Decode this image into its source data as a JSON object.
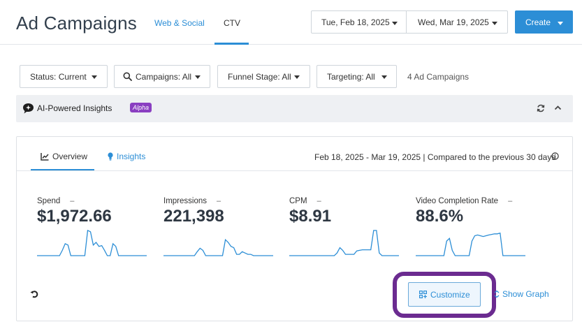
{
  "header": {
    "title": "Ad Campaigns",
    "tabs": [
      {
        "label": "Web & Social",
        "active": false
      },
      {
        "label": "CTV",
        "active": true
      }
    ],
    "date_start": "Tue, Feb 18, 2025",
    "date_end": "Wed, Mar 19, 2025",
    "create_label": "Create"
  },
  "filters": {
    "status": "Status: Current",
    "campaigns": "Campaigns: All",
    "funnel": "Funnel Stage: All",
    "targeting": "Targeting: All",
    "count": "4 Ad Campaigns"
  },
  "insights_bar": {
    "title": "AI-Powered Insights",
    "badge": "Alpha",
    "badge_color": "#8a3fc1"
  },
  "card": {
    "tabs": [
      {
        "label": "Overview",
        "active": true,
        "icon": "line-chart-icon"
      },
      {
        "label": "Insights",
        "active": false,
        "icon": "lightbulb-icon"
      }
    ],
    "range": "Feb 18, 2025 - Mar 19, 2025 | Compared to the previous 30 days",
    "metrics": [
      {
        "label": "Spend",
        "change": "–",
        "value": "$1,972.66",
        "spark": [
          0,
          0,
          0,
          0,
          0,
          0,
          0,
          0,
          0,
          0.2,
          0.45,
          0.4,
          0,
          0,
          0,
          0,
          0,
          0,
          0.95,
          0.9,
          0.4,
          0.5,
          0.35,
          0.38,
          0.2,
          0,
          0,
          0.45,
          0.35,
          0,
          0,
          0,
          0,
          0,
          0,
          0,
          0,
          0,
          0,
          0
        ]
      },
      {
        "label": "Impressions",
        "change": "–",
        "value": "221,398",
        "spark": [
          0,
          0,
          0,
          0,
          0,
          0,
          0,
          0,
          0,
          0,
          0,
          0,
          0.15,
          0.28,
          0.2,
          0,
          0,
          0,
          0,
          0,
          0,
          0,
          0.6,
          0.5,
          0.35,
          0.3,
          0.05,
          0.05,
          0.15,
          0.1,
          0.05,
          0.05,
          0,
          0,
          0,
          0,
          0,
          0,
          0,
          0
        ]
      },
      {
        "label": "CPM",
        "change": "–",
        "value": "$8.91",
        "spark": [
          0,
          0,
          0,
          0,
          0,
          0,
          0,
          0,
          0,
          0,
          0,
          0,
          0,
          0,
          0,
          0,
          0,
          0.1,
          0.3,
          0.2,
          0.05,
          0.05,
          0.05,
          0.05,
          0.18,
          0.2,
          0.22,
          0.22,
          0.22,
          0.22,
          0.95,
          0.95,
          0.1,
          0,
          0,
          0,
          0,
          0,
          0,
          0
        ]
      },
      {
        "label": "Video Completion Rate",
        "change": "–",
        "value": "88.6%",
        "spark": [
          0,
          0,
          0,
          0,
          0,
          0,
          0,
          0,
          0,
          0,
          0,
          0.55,
          0.65,
          0.2,
          0,
          0,
          0,
          0,
          0,
          0,
          0.55,
          0.75,
          0.78,
          0.75,
          0.72,
          0.75,
          0.78,
          0.8,
          0.82,
          0.82,
          0.85,
          0,
          0,
          0,
          0,
          0,
          0,
          0,
          0,
          0
        ]
      }
    ],
    "spark_color": "#2c8ed6",
    "customize_label": "Customize",
    "show_graph_label": "Show Graph",
    "highlight_color": "#6b2b90"
  }
}
